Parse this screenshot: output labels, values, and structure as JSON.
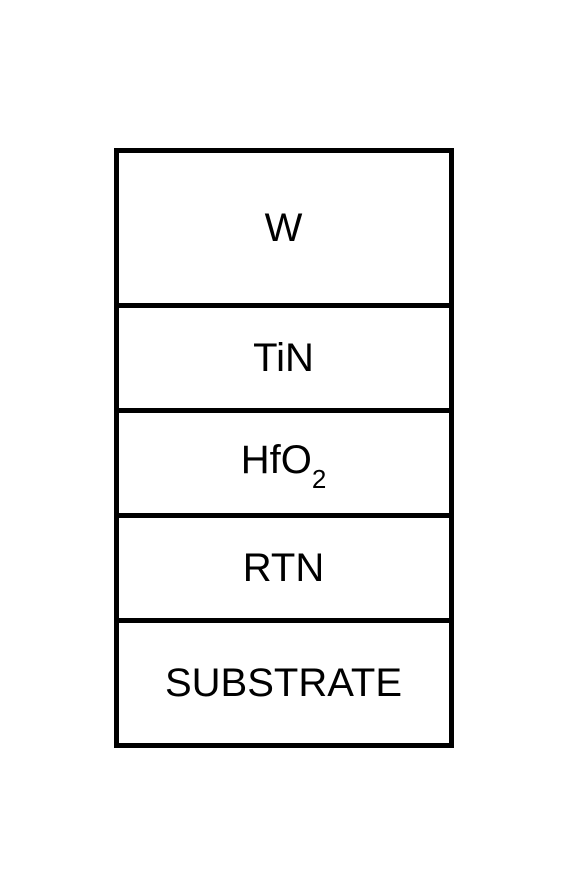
{
  "diagram": {
    "type": "layer-stack",
    "border_color": "#000000",
    "border_width": 5,
    "background_color": "#ffffff",
    "text_color": "#000000",
    "font_size": 40,
    "font_family": "Arial",
    "container_width": 340,
    "layers": [
      {
        "label": "W",
        "height": 155,
        "has_subscript": false
      },
      {
        "label": "TiN",
        "height": 105,
        "has_subscript": false
      },
      {
        "label_base": "HfO",
        "label_sub": "2",
        "height": 105,
        "has_subscript": true
      },
      {
        "label": "RTN",
        "height": 105,
        "has_subscript": false
      },
      {
        "label": "SUBSTRATE",
        "height": 120,
        "has_subscript": false
      }
    ]
  }
}
